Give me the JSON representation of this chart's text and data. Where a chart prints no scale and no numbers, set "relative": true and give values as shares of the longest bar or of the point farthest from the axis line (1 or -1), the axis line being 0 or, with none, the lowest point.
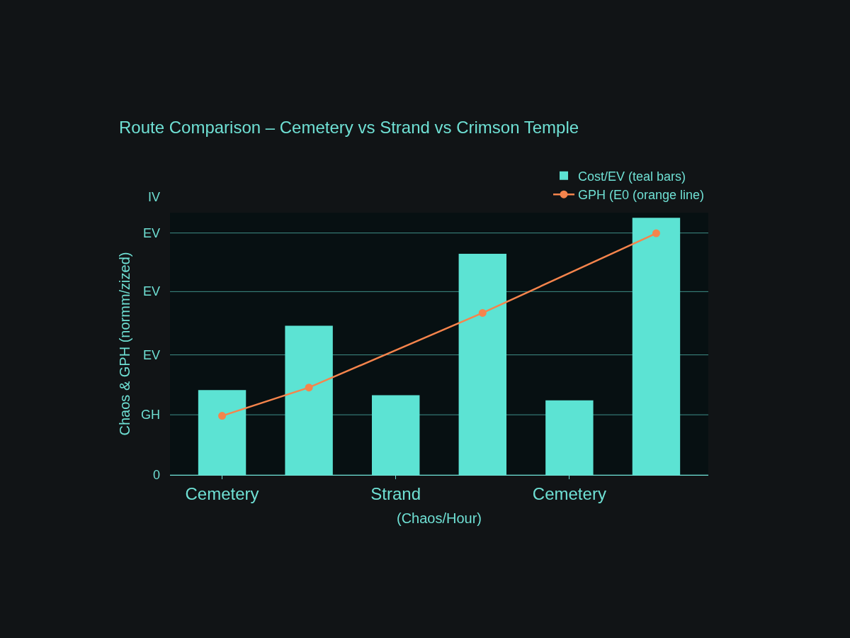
{
  "chart_data": {
    "type": "bar",
    "title": "Route Comparison – Cemetery vs Strand vs Crimson Temple",
    "categories": [
      "Cemetery",
      null,
      "Strand",
      null,
      "Cemetery",
      null
    ],
    "xlabel": "(Chaos/Hour)",
    "ylabel": "Chaos & GPH (normm/zized)",
    "relative": true,
    "annotations": [
      "IV"
    ],
    "ref_lines": [
      {
        "axis": "y",
        "value": 0,
        "label": "0"
      },
      {
        "axis": "y",
        "value": 0.234,
        "label": "GH"
      },
      {
        "axis": "y",
        "value": 0.467,
        "label": "EV"
      },
      {
        "axis": "y",
        "value": 0.713,
        "label": "EV"
      },
      {
        "axis": "y",
        "value": 0.941,
        "label": "EV"
      }
    ],
    "legend": "top right",
    "series": [
      {
        "name": "Cost/EV (teal bars)",
        "color": "#5ce3d3",
        "values": [
          0.33,
          0.58,
          0.31,
          0.86,
          0.29,
          1.0
        ]
      },
      {
        "name": "GPH (E0 (orange line)",
        "type": "line",
        "color": "#f5844c",
        "marker": "circle",
        "values": [
          0.23,
          0.34,
          null,
          0.63,
          null,
          0.94
        ]
      }
    ]
  }
}
